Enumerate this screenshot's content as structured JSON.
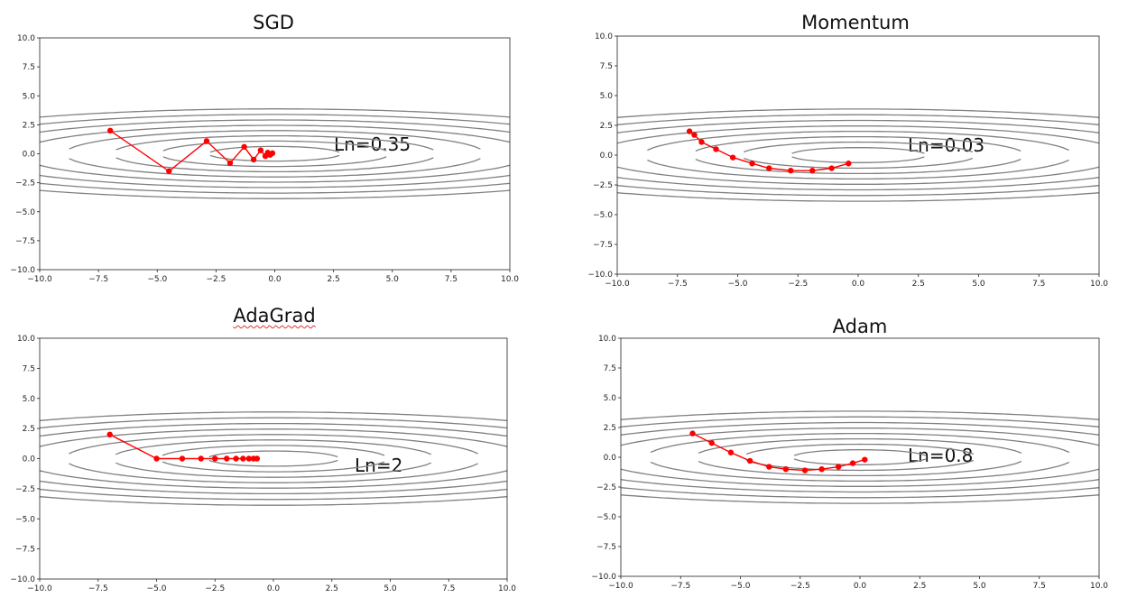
{
  "chart_data": [
    {
      "type": "line",
      "title": "SGD",
      "annotation": "Ln=0.35",
      "xlim": [
        -10,
        10
      ],
      "ylim": [
        -10,
        10
      ],
      "xticks": [
        "−10.0",
        "−7.5",
        "−5.0",
        "−2.5",
        "0.0",
        "2.5",
        "5.0",
        "7.5",
        "10.0"
      ],
      "yticks": [
        "−10.0",
        "−7.5",
        "−5.0",
        "−2.5",
        "0.0",
        "2.5",
        "5.0",
        "7.5",
        "10.0"
      ],
      "contour_levels": [
        0.4,
        1.2,
        2.4,
        4,
        6,
        8.5,
        11.5,
        15
      ],
      "contour_color": "#808080",
      "path_color": "#ff0000",
      "series": [
        {
          "x": [
            -7.0,
            -4.5,
            -2.9,
            -1.9,
            -1.3,
            -0.9,
            -0.6,
            -0.4,
            -0.3,
            -0.2,
            -0.1
          ],
          "y": [
            2.0,
            -1.5,
            1.1,
            -0.8,
            0.6,
            -0.5,
            0.3,
            -0.2,
            0.1,
            -0.1,
            0.05
          ]
        }
      ]
    },
    {
      "type": "line",
      "title": "Momentum",
      "annotation": "Ln=0.03",
      "xlim": [
        -10,
        10
      ],
      "ylim": [
        -10,
        10
      ],
      "xticks": [
        "−10.0",
        "−7.5",
        "−5.0",
        "−2.5",
        "0.0",
        "2.5",
        "5.0",
        "7.5",
        "10.0"
      ],
      "yticks": [
        "−10.0",
        "−7.5",
        "−5.0",
        "−2.5",
        "0.0",
        "2.5",
        "5.0",
        "7.5",
        "10.0"
      ],
      "contour_levels": [
        0.4,
        1.2,
        2.4,
        4,
        6,
        8.5,
        11.5,
        15
      ],
      "contour_color": "#808080",
      "path_color": "#ff0000",
      "series": [
        {
          "x": [
            -7.0,
            -6.8,
            -6.5,
            -5.9,
            -5.2,
            -4.4,
            -3.7,
            -2.8,
            -1.9,
            -1.1,
            -0.4
          ],
          "y": [
            2.0,
            1.7,
            1.1,
            0.5,
            -0.2,
            -0.7,
            -1.1,
            -1.3,
            -1.3,
            -1.1,
            -0.7
          ]
        }
      ]
    },
    {
      "type": "line",
      "title": "AdaGrad",
      "annotation": "Ln=2",
      "xlim": [
        -10,
        10
      ],
      "ylim": [
        -10,
        10
      ],
      "xticks": [
        "−10.0",
        "−7.5",
        "−5.0",
        "−2.5",
        "0.0",
        "2.5",
        "5.0",
        "7.5",
        "10.0"
      ],
      "yticks": [
        "−10.0",
        "−7.5",
        "−5.0",
        "−2.5",
        "0.0",
        "2.5",
        "5.0",
        "7.5",
        "10.0"
      ],
      "contour_levels": [
        0.4,
        1.2,
        2.4,
        4,
        6,
        8.5,
        11.5,
        15
      ],
      "contour_color": "#808080",
      "path_color": "#ff0000",
      "series": [
        {
          "x": [
            -7.0,
            -5.0,
            -3.9,
            -3.1,
            -2.5,
            -2.0,
            -1.6,
            -1.3,
            -1.05,
            -0.85,
            -0.7
          ],
          "y": [
            2.0,
            0.0,
            0.0,
            0.0,
            0.0,
            0.0,
            0.0,
            0.0,
            0.0,
            0.0,
            0.0
          ]
        }
      ]
    },
    {
      "type": "line",
      "title": "Adam",
      "annotation": "Ln=0.8",
      "xlim": [
        -10,
        10
      ],
      "ylim": [
        -10,
        10
      ],
      "xticks": [
        "−10.0",
        "−7.5",
        "−5.0",
        "−2.5",
        "0.0",
        "2.5",
        "5.0",
        "7.5",
        "10.0"
      ],
      "yticks": [
        "−10.0",
        "−7.5",
        "−5.0",
        "−2.5",
        "0.0",
        "2.5",
        "5.0",
        "7.5",
        "10.0"
      ],
      "contour_levels": [
        0.4,
        1.2,
        2.4,
        4,
        6,
        8.5,
        11.5,
        15
      ],
      "contour_color": "#808080",
      "path_color": "#ff0000",
      "series": [
        {
          "x": [
            -7.0,
            -6.2,
            -5.4,
            -4.6,
            -3.8,
            -3.1,
            -2.3,
            -1.6,
            -0.9,
            -0.3,
            0.2
          ],
          "y": [
            2.0,
            1.2,
            0.4,
            -0.3,
            -0.8,
            -1.0,
            -1.1,
            -1.0,
            -0.8,
            -0.5,
            -0.2
          ]
        }
      ]
    }
  ]
}
